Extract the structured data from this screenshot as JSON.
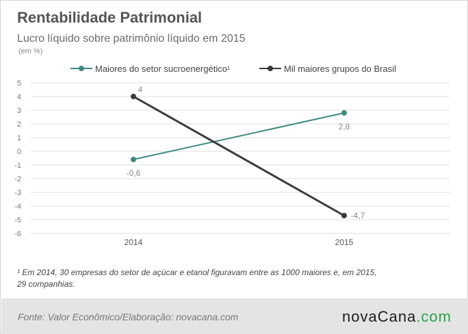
{
  "header": {
    "title": "Rentabilidade Patrimonial",
    "subtitle": "Lucro líquido sobre patrimônio líquido em 2015",
    "unit": "(em %)"
  },
  "colors": {
    "series_teal": "#3e8a80",
    "series_dark": "#3a3a3a",
    "grid": "#dddddd",
    "axis_text": "#777777",
    "footer_bg": "#e4e4e4",
    "logo_accent": "#2aa24a"
  },
  "chart_data": {
    "type": "line",
    "x": [
      "2014",
      "2015"
    ],
    "series": [
      {
        "name": "Maiores do setor sucroenergético¹",
        "values": [
          -0.6,
          2.8
        ],
        "labels": [
          "-0,6",
          "2,8"
        ],
        "color": "#3e8a80"
      },
      {
        "name": "Mil maiores grupos do Brasil",
        "values": [
          4,
          -4.7
        ],
        "labels": [
          "4",
          "-4,7"
        ],
        "color": "#3a3a3a"
      }
    ],
    "ylim": [
      -6,
      5
    ],
    "yticks": [
      5,
      4,
      3,
      2,
      1,
      0,
      -1,
      -2,
      -3,
      -4,
      -5,
      -6
    ],
    "ytick_labels": [
      "5",
      "4",
      "3",
      "2",
      "1",
      "0",
      "-1",
      "-2",
      "-3",
      "-4",
      "-5",
      "-6"
    ],
    "grid": true,
    "legend_position": "top"
  },
  "footnote": "¹ Em 2014, 30 empresas  do setor de açúcar e etanol figuravam entre as 1000 maiores e, em 2015, 29 companhias.",
  "footer": {
    "source": "Fonte: Valor  Econômico/Elaboração: novacana.com",
    "logo_main": "novaCana",
    "logo_suffix": ".com"
  }
}
